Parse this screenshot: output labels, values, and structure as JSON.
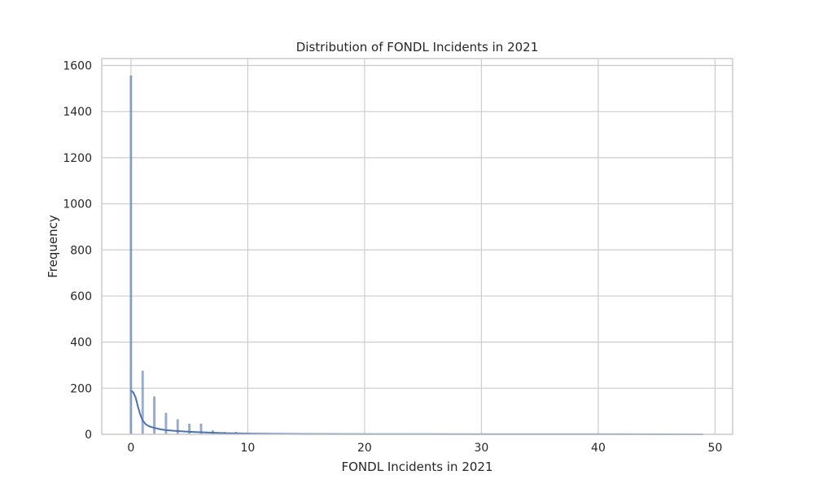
{
  "chart_data": {
    "type": "bar",
    "title": "Distribution of FONDL Incidents in 2021",
    "xlabel": "FONDL Incidents in 2021",
    "ylabel": "Frequency",
    "xlim": [
      -2.5,
      51.5
    ],
    "ylim": [
      0,
      1630
    ],
    "xticks": [
      "0",
      "10",
      "20",
      "30",
      "40",
      "50"
    ],
    "yticks": [
      "0",
      "200",
      "400",
      "600",
      "800",
      "1000",
      "1200",
      "1400",
      "1600"
    ],
    "grid": true,
    "bars": {
      "x": [
        0,
        1,
        2,
        3,
        4,
        5,
        6,
        7,
        8,
        9,
        10,
        11,
        12,
        13,
        14,
        15,
        16,
        17,
        18,
        20,
        22,
        25,
        30,
        35,
        40,
        45,
        49
      ],
      "values": [
        1555,
        275,
        163,
        92,
        64,
        45,
        45,
        16,
        9,
        9,
        5,
        4,
        3,
        3,
        2,
        2,
        2,
        2,
        1,
        1,
        1,
        1,
        1,
        1,
        1,
        1,
        1
      ]
    },
    "kde": {
      "x": [
        0,
        0.2,
        0.4,
        0.6,
        0.8,
        1,
        1.3,
        1.6,
        2,
        2.5,
        3,
        4,
        5,
        6,
        7,
        8,
        9,
        10,
        12,
        15,
        20,
        30,
        40,
        49
      ],
      "y": [
        190,
        182,
        160,
        120,
        85,
        60,
        42,
        34,
        28,
        22,
        18,
        14,
        11,
        9,
        7,
        5,
        4,
        3,
        2,
        1.5,
        1,
        0.5,
        0.3,
        0.2
      ]
    },
    "colors": {
      "bar": "#4c72b0",
      "kde": "#4c72b0",
      "grid": "#cccccc",
      "axes_edge": "#cccccc",
      "text": "#262626"
    }
  }
}
